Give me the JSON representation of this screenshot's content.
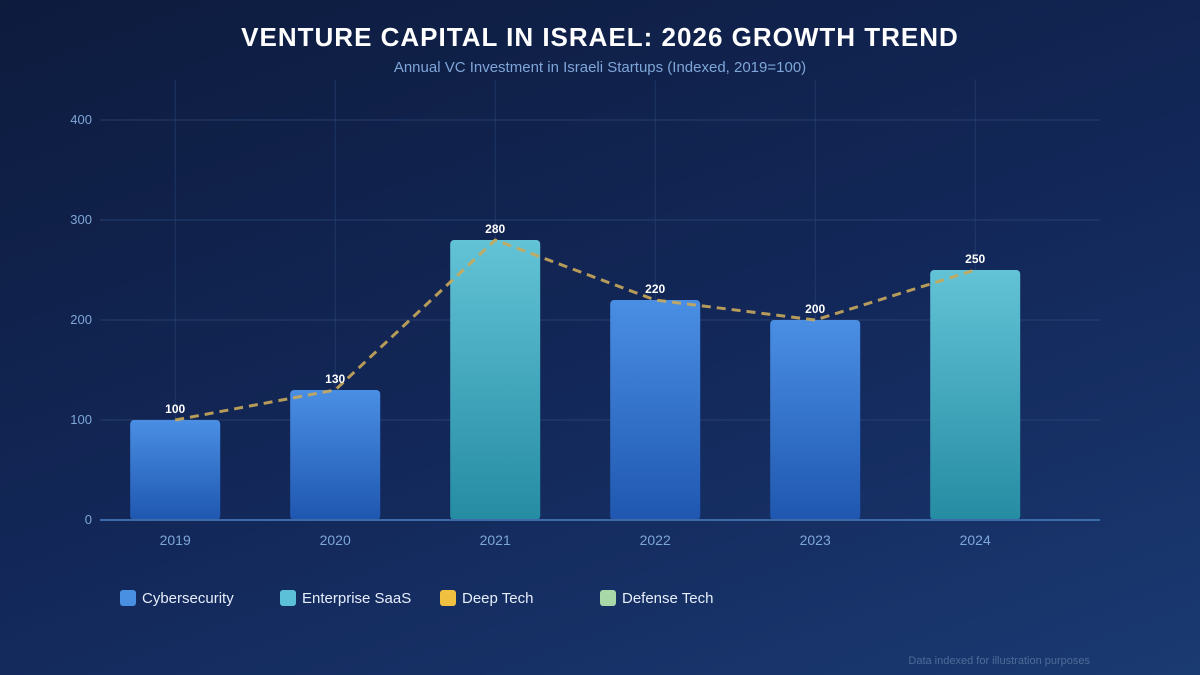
{
  "chart_data": {
    "type": "bar",
    "title": "VENTURE CAPITAL IN ISRAEL: 2026 GROWTH TREND",
    "subtitle": "Annual VC Investment in Israeli Startups (Indexed, 2019=100)",
    "categories": [
      "2019",
      "2020",
      "2021",
      "2022",
      "2023",
      "2024"
    ],
    "values": [
      100,
      130,
      280,
      220,
      200,
      250
    ],
    "bar_colors": [
      "cyber",
      "cyber",
      "saas",
      "cyber",
      "cyber",
      "saas"
    ],
    "line_overlay": {
      "style": "dashed",
      "color": "#c9a85a",
      "values": [
        100,
        130,
        280,
        220,
        200,
        250
      ]
    },
    "yticks": [
      0,
      100,
      200,
      300,
      400
    ],
    "ylim": [
      0,
      440
    ],
    "grid": true,
    "legend": {
      "position": "bottom-left",
      "entries": [
        {
          "label": "Cybersecurity",
          "color": "#4a90e2"
        },
        {
          "label": "Enterprise SaaS",
          "color": "#5bc0d8"
        },
        {
          "label": "Deep Tech",
          "color": "#f0c040"
        },
        {
          "label": "Defense Tech",
          "color": "#a8d8a8"
        }
      ]
    },
    "footnote": "Data indexed for illustration purposes"
  },
  "colors": {
    "cyber_top": "#4a8fe4",
    "cyber_bottom": "#1f57b0",
    "saas_top": "#63c3d6",
    "saas_bottom": "#258ca3",
    "axis": "#3d6aa8",
    "grid": "#2b4677",
    "tick": "#7fa6d8",
    "value_label": "#ffffff"
  }
}
